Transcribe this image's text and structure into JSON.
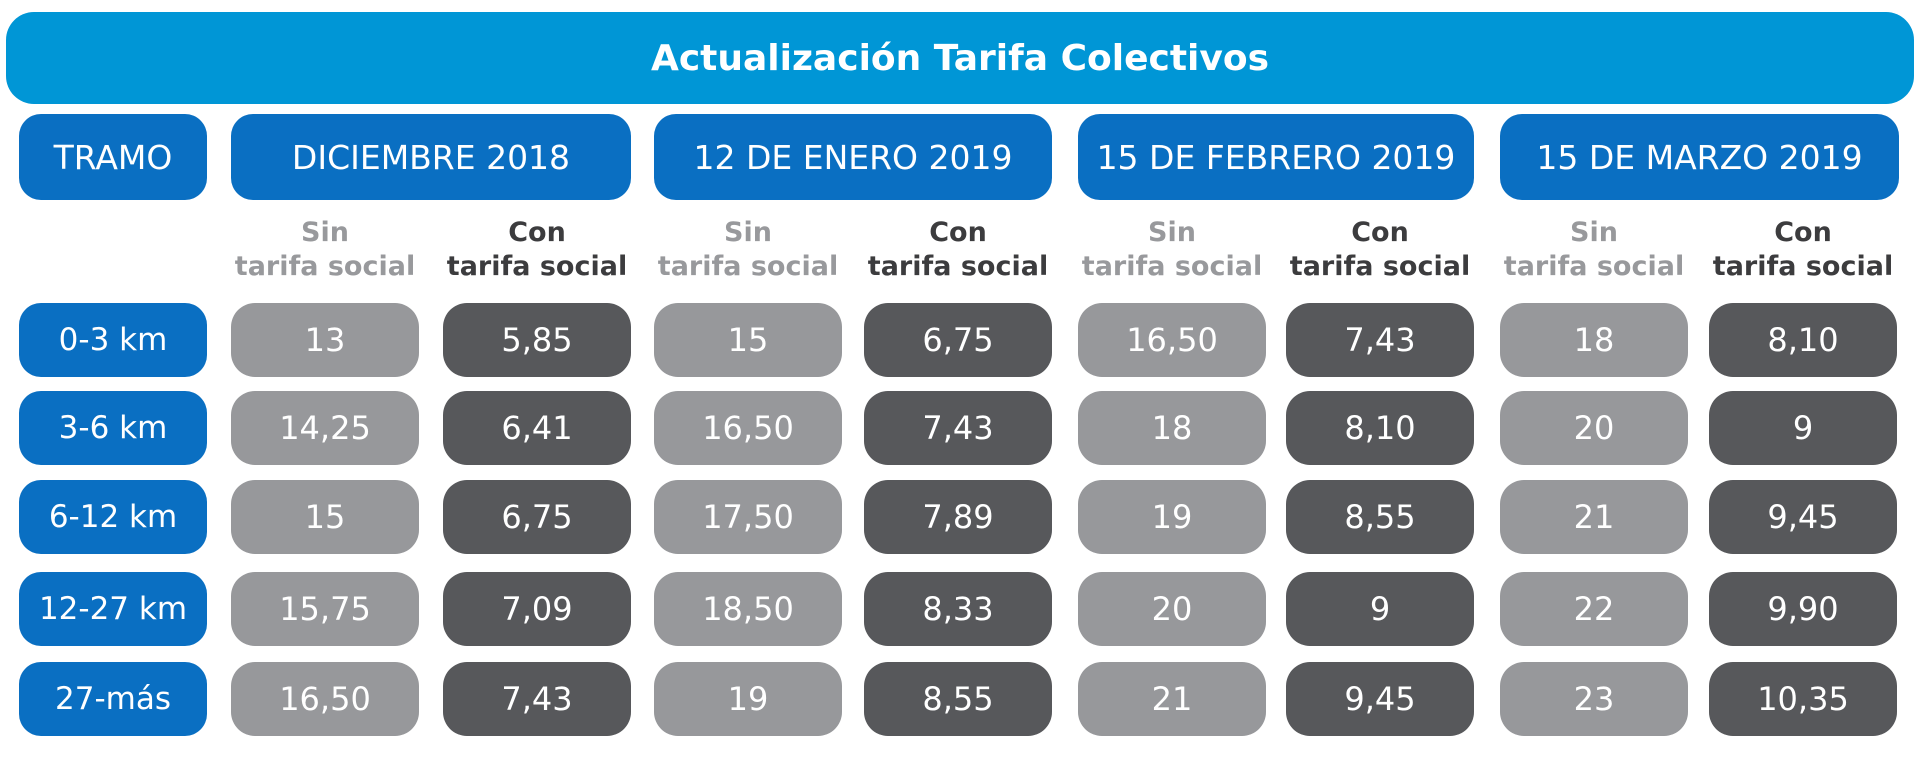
{
  "title": "Actualización Tarifa Colectivos",
  "colors": {
    "title_bg": "#0096d6",
    "header_bg": "#0a6fc2",
    "sin_cell": "#97989b",
    "con_cell": "#57585b"
  },
  "tramo_header": "TRAMO",
  "periods": [
    {
      "label": "DICIEMBRE 2018",
      "sin": {
        "line1": "Sin",
        "line2": "tarifa social"
      },
      "con": {
        "line1": "Con",
        "line2": "tarifa social"
      }
    },
    {
      "label": "12 DE ENERO 2019",
      "sin": {
        "line1": "Sin",
        "line2": "tarifa social"
      },
      "con": {
        "line1": "Con",
        "line2": "tarifa social"
      }
    },
    {
      "label": "15 DE FEBRERO 2019",
      "sin": {
        "line1": "Sin",
        "line2": "tarifa social"
      },
      "con": {
        "line1": "Con",
        "line2": "tarifa social"
      }
    },
    {
      "label": "15 DE MARZO 2019",
      "sin": {
        "line1": "Sin",
        "line2": "tarifa social"
      },
      "con": {
        "line1": "Con",
        "line2": "tarifa social"
      }
    }
  ],
  "rows": [
    {
      "tramo": "0-3 km",
      "values": [
        "13",
        "5,85",
        "15",
        "6,75",
        "16,50",
        "7,43",
        "18",
        "8,10"
      ]
    },
    {
      "tramo": "3-6 km",
      "values": [
        "14,25",
        "6,41",
        "16,50",
        "7,43",
        "18",
        "8,10",
        "20",
        "9"
      ]
    },
    {
      "tramo": "6-12 km",
      "values": [
        "15",
        "6,75",
        "17,50",
        "7,89",
        "19",
        "8,55",
        "21",
        "9,45"
      ]
    },
    {
      "tramo": "12-27 km",
      "values": [
        "15,75",
        "7,09",
        "18,50",
        "8,33",
        "20",
        "9",
        "22",
        "9,90"
      ]
    },
    {
      "tramo": "27-más",
      "values": [
        "16,50",
        "7,43",
        "19",
        "8,55",
        "21",
        "9,45",
        "23",
        "10,35"
      ]
    }
  ]
}
